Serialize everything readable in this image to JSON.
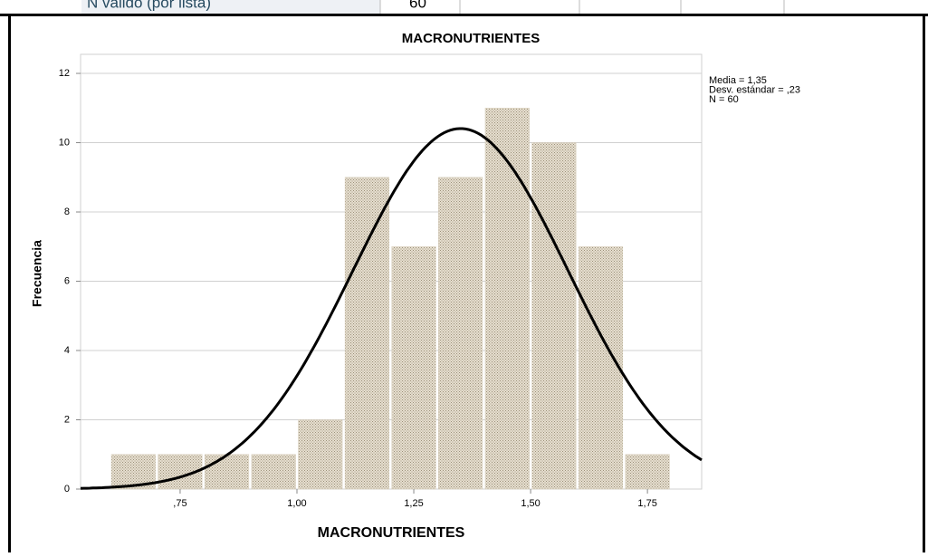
{
  "top_row": {
    "label": "N válido (por lista)",
    "value": "60"
  },
  "chart_data": {
    "type": "histogram",
    "title": "MACRONUTRIENTES",
    "x_label": "MACRONUTRIENTES",
    "y_label": "Frecuencia",
    "bins": [
      0.6,
      0.7,
      0.8,
      0.9,
      1.0,
      1.1,
      1.2,
      1.3,
      1.4,
      1.5,
      1.6,
      1.7,
      1.8
    ],
    "counts": [
      1,
      1,
      1,
      1,
      2,
      9,
      7,
      9,
      11,
      10,
      7,
      1
    ],
    "color": "#d8cfbc",
    "xlim": [
      0.537,
      1.866
    ],
    "xticks": [
      {
        "value": 0.75,
        "label": ",75"
      },
      {
        "value": 1.0,
        "label": "1,00"
      },
      {
        "value": 1.25,
        "label": "1,25"
      },
      {
        "value": 1.5,
        "label": "1,50"
      },
      {
        "value": 1.75,
        "label": "1,75"
      }
    ],
    "ylim": [
      0,
      12.55
    ],
    "yticks": [
      0,
      2,
      4,
      6,
      8,
      10,
      12
    ],
    "grid": true,
    "mean": 1.35,
    "std": 0.23,
    "n": 60,
    "annotations": [
      "Media = 1,35",
      "Desv. estándar = ,23",
      "N = 60"
    ]
  }
}
